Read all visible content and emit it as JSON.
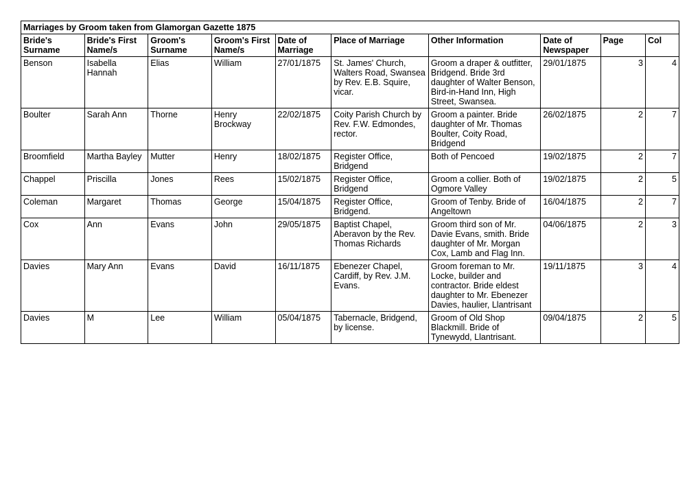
{
  "title": "Marriages by Groom taken from Glamorgan Gazette 1875",
  "headers": {
    "c1": "Bride's Surname",
    "c2": "Bride's First Name/s",
    "c3": "Groom's Surname",
    "c4": "Groom's First Name/s",
    "c5": "Date of Marriage",
    "c6": "Place of Marriage",
    "c7": "Other Information",
    "c8": "Date of Newspaper",
    "c9": "Page",
    "c10": "Col"
  },
  "rows": [
    {
      "bride_surname": "Benson",
      "bride_first": "Isabella Hannah",
      "groom_surname": "Elias",
      "groom_first": "William",
      "date_marriage": "27/01/1875",
      "place": "St. James' Church, Walters Road, Swansea by Rev. E.B. Squire, vicar.",
      "other": "Groom a draper & outfitter, Bridgend.  Bride 3rd daughter of Walter Benson, Bird-in-Hand Inn, High Street, Swansea.",
      "date_news": "29/01/1875",
      "page": "3",
      "col": "4"
    },
    {
      "bride_surname": "Boulter",
      "bride_first": "Sarah Ann",
      "groom_surname": "Thorne",
      "groom_first": "Henry Brockway",
      "date_marriage": "22/02/1875",
      "place": "Coity Parish Church by Rev. F.W. Edmondes, rector.",
      "other": "Groom a painter.  Bride daughter of Mr. Thomas Boulter, Coity Road, Bridgend",
      "date_news": "26/02/1875",
      "page": "2",
      "col": "7"
    },
    {
      "bride_surname": "Broomfield",
      "bride_first": "Martha Bayley",
      "groom_surname": "Mutter",
      "groom_first": "Henry",
      "date_marriage": "18/02/1875",
      "place": "Register Office, Bridgend",
      "other": "Both of Pencoed",
      "date_news": "19/02/1875",
      "page": "2",
      "col": "7"
    },
    {
      "bride_surname": "Chappel",
      "bride_first": "Priscilla",
      "groom_surname": "Jones",
      "groom_first": "Rees",
      "date_marriage": "15/02/1875",
      "place": "Register Office, Bridgend",
      "other": "Groom a collier.  Both of Ogmore Valley",
      "date_news": "19/02/1875",
      "page": "2",
      "col": "5"
    },
    {
      "bride_surname": "Coleman",
      "bride_first": "Margaret",
      "groom_surname": "Thomas",
      "groom_first": "George",
      "date_marriage": "15/04/1875",
      "place": "Register Office, Bridgend.",
      "other": "Groom of Tenby.  Bride of Angeltown",
      "date_news": "16/04/1875",
      "page": "2",
      "col": "7"
    },
    {
      "bride_surname": "Cox",
      "bride_first": "Ann",
      "groom_surname": "Evans",
      "groom_first": "John",
      "date_marriage": "29/05/1875",
      "place": "Baptist Chapel, Aberavon by the Rev. Thomas Richards",
      "other": "Groom third son of Mr. Davie Evans, smith.  Bride daughter of Mr. Morgan Cox, Lamb and Flag Inn.",
      "date_news": "04/06/1875",
      "page": "2",
      "col": "3"
    },
    {
      "bride_surname": "Davies",
      "bride_first": "Mary Ann",
      "groom_surname": "Evans",
      "groom_first": "David",
      "date_marriage": "16/11/1875",
      "place": "Ebenezer Chapel, Cardiff, by Rev. J.M. Evans.",
      "other": "Groom foreman to Mr. Locke, builder and contractor.  Bride eldest daughter to Mr. Ebenezer Davies, haulier, Llantrisant",
      "date_news": "19/11/1875",
      "page": "3",
      "col": "4"
    },
    {
      "bride_surname": "Davies",
      "bride_first": "M",
      "groom_surname": "Lee",
      "groom_first": "William",
      "date_marriage": "05/04/1875",
      "place": "Tabernacle, Bridgend, by license.",
      "other": "Groom of Old Shop Blackmill. Bride of Tynewydd, Llantrisant.",
      "date_news": "09/04/1875",
      "page": "2",
      "col": "5"
    }
  ]
}
